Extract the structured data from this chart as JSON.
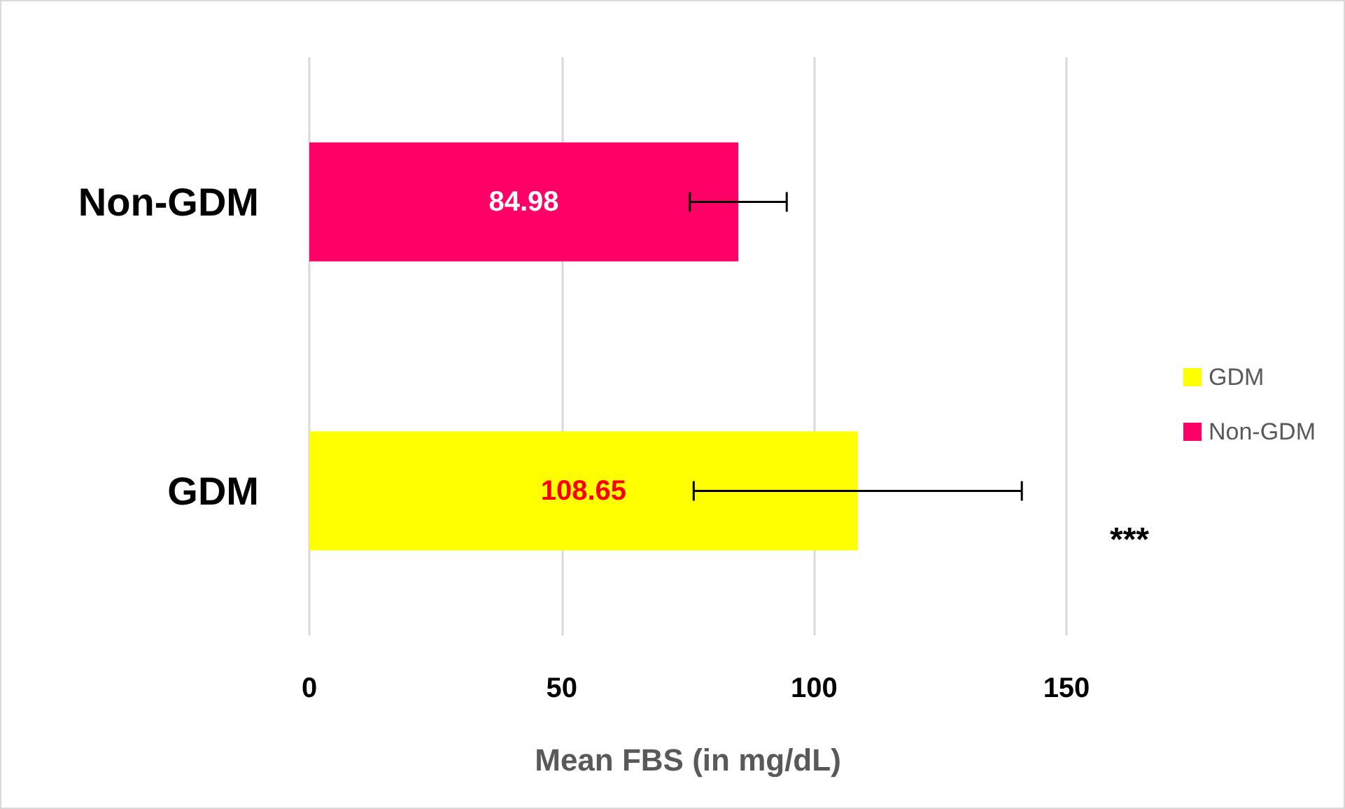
{
  "chart_data": {
    "type": "bar",
    "orientation": "horizontal",
    "xlabel": "Mean FBS (in mg/dL)",
    "categories": [
      "Non-GDM",
      "GDM"
    ],
    "series": [
      {
        "name": "GDM",
        "color": "#ffff00",
        "values": [
          null,
          108.65
        ],
        "errors": [
          null,
          32.5
        ]
      },
      {
        "name": "Non-GDM",
        "color": "#ff0066",
        "values": [
          84.98,
          null
        ],
        "errors": [
          9.6,
          null
        ]
      }
    ],
    "xlim": [
      0,
      150
    ],
    "xticks": [
      0,
      50,
      100,
      150
    ],
    "grid": "x",
    "legend": "right",
    "data_labels": true,
    "annotations": [
      "***"
    ]
  }
}
